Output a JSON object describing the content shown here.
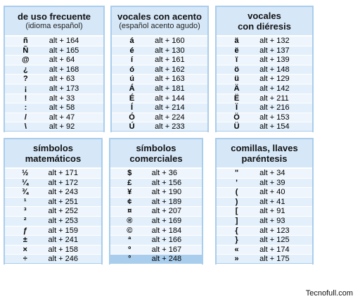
{
  "panels": [
    {
      "title": [
        "de uso frecuente"
      ],
      "subtitle": "(idioma español)",
      "rows": [
        [
          "ñ",
          "alt + 164"
        ],
        [
          "Ñ",
          "alt + 165"
        ],
        [
          "@",
          "alt + 64"
        ],
        [
          "¿",
          "alt + 168"
        ],
        [
          "?",
          "alt + 63"
        ],
        [
          "¡",
          "alt + 173"
        ],
        [
          "!",
          "alt + 33"
        ],
        [
          ":",
          "alt + 58"
        ],
        [
          "/",
          "alt + 47"
        ],
        [
          "\\",
          "alt + 92"
        ]
      ]
    },
    {
      "title": [
        "vocales con acento"
      ],
      "subtitle": "(español acento agudo)",
      "rows": [
        [
          "á",
          "alt + 160"
        ],
        [
          "é",
          "alt + 130"
        ],
        [
          "í",
          "alt + 161"
        ],
        [
          "ó",
          "alt + 162"
        ],
        [
          "ú",
          "alt + 163"
        ],
        [
          "Á",
          "alt + 181"
        ],
        [
          "É",
          "alt + 144"
        ],
        [
          "Í",
          "alt + 214"
        ],
        [
          "Ó",
          "alt + 224"
        ],
        [
          "Ú",
          "alt + 233"
        ]
      ]
    },
    {
      "title": [
        "vocales",
        "con diéresis"
      ],
      "rows": [
        [
          "ä",
          "alt + 132"
        ],
        [
          "ë",
          "alt + 137"
        ],
        [
          "ï",
          "alt + 139"
        ],
        [
          "ö",
          "alt + 148"
        ],
        [
          "ü",
          "alt + 129"
        ],
        [
          "Ä",
          "alt + 142"
        ],
        [
          "Ë",
          "alt + 211"
        ],
        [
          "Ï",
          "alt + 216"
        ],
        [
          "Ö",
          "alt + 153"
        ],
        [
          "Ü",
          "alt + 154"
        ]
      ]
    },
    {
      "title": [
        "símbolos",
        "matemáticos"
      ],
      "rows": [
        [
          "½",
          "alt + 171"
        ],
        [
          "¼",
          "alt + 172"
        ],
        [
          "¾",
          "alt + 243"
        ],
        [
          "¹",
          "alt + 251"
        ],
        [
          "³",
          "alt + 252"
        ],
        [
          "²",
          "alt + 253"
        ],
        [
          "ƒ",
          "alt + 159"
        ],
        [
          "±",
          "alt + 241"
        ],
        [
          "×",
          "alt + 158"
        ],
        [
          "÷",
          "alt + 246"
        ]
      ]
    },
    {
      "title": [
        "símbolos",
        "comerciales"
      ],
      "rows": [
        [
          "$",
          "alt + 36"
        ],
        [
          "£",
          "alt + 156"
        ],
        [
          "¥",
          "alt + 190"
        ],
        [
          "¢",
          "alt + 189"
        ],
        [
          "¤",
          "alt + 207"
        ],
        [
          "®",
          "alt + 169"
        ],
        [
          "©",
          "alt + 184"
        ],
        [
          "ª",
          "alt + 166"
        ],
        [
          "º",
          "alt + 167"
        ],
        [
          "°",
          "alt + 248"
        ]
      ]
    },
    {
      "title": [
        "comillas, llaves",
        "paréntesis"
      ],
      "rows": [
        [
          "\"",
          "alt + 34"
        ],
        [
          "'",
          "alt + 39"
        ],
        [
          "(",
          "alt + 40"
        ],
        [
          ")",
          "alt + 41"
        ],
        [
          "[",
          "alt + 91"
        ],
        [
          "]",
          "alt + 93"
        ],
        [
          "{",
          "alt + 123"
        ],
        [
          "}",
          "alt + 125"
        ],
        [
          "«",
          "alt + 174"
        ],
        [
          "»",
          "alt + 175"
        ]
      ]
    }
  ],
  "footer": "Tecnofull.com"
}
